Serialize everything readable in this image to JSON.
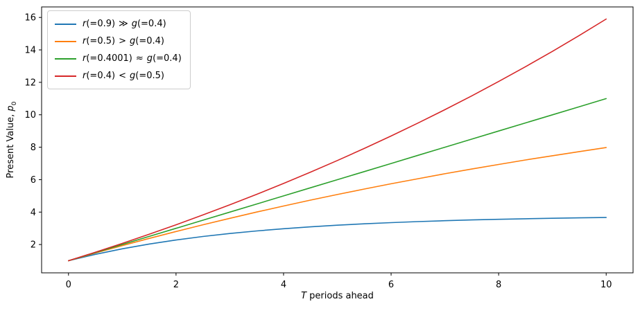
{
  "chart_data": {
    "type": "line",
    "title": "",
    "xlabel": {
      "var": "T",
      "text": " periods ahead"
    },
    "ylabel": {
      "text": "Present Value, ",
      "var": "p",
      "sub": "0"
    },
    "xlim": [
      -0.5,
      10.5
    ],
    "ylim": [
      0.255,
      16.649
    ],
    "xticks": [
      0,
      2,
      4,
      6,
      8,
      10
    ],
    "yticks": [
      2,
      4,
      6,
      8,
      10,
      12,
      14,
      16
    ],
    "grid": false,
    "legend_position": "upper left",
    "axis_color": "#000000",
    "x": [
      0,
      0.5,
      1,
      1.5,
      2,
      2.5,
      3,
      3.5,
      4,
      4.5,
      5,
      5.5,
      6,
      6.5,
      7,
      7.5,
      8,
      8.5,
      9,
      9.5,
      10
    ],
    "series": [
      {
        "name": "r(=0.9) ≫ g(=0.4)",
        "label_parts": {
          "lhs_var": "r",
          "lhs": "(=0.9)",
          "rel": "≫",
          "rhs_var": "g",
          "rhs": "(=0.4)"
        },
        "color": "#1f77b4",
        "values": [
          1.0,
          1.397,
          1.737,
          2.029,
          2.28,
          2.495,
          2.68,
          2.838,
          2.975,
          3.091,
          3.192,
          3.278,
          3.352,
          3.415,
          3.47,
          3.517,
          3.557,
          3.591,
          3.621,
          3.646,
          3.668
        ]
      },
      {
        "name": "r(=0.5) > g(=0.4)",
        "label_parts": {
          "lhs_var": "r",
          "lhs": "(=0.5)",
          "rel": ">",
          "rhs_var": "g",
          "rhs": "(=0.4)"
        },
        "color": "#ff7f0e",
        "values": [
          1.0,
          1.475,
          1.933,
          2.376,
          2.804,
          3.218,
          3.617,
          4.003,
          4.376,
          4.737,
          5.085,
          5.421,
          5.746,
          6.059,
          6.363,
          6.655,
          6.938,
          7.212,
          7.476,
          7.731,
          7.977
        ]
      },
      {
        "name": "r(=0.4001) ≈ g(=0.4)",
        "label_parts": {
          "lhs_var": "r",
          "lhs": "(=0.4001)",
          "rel": "≈",
          "rhs_var": "g",
          "rhs": "(=0.4)"
        },
        "color": "#2ca02c",
        "values": [
          1.0,
          1.5,
          2.0,
          2.5,
          3.0,
          3.5,
          3.999,
          4.499,
          4.999,
          5.499,
          5.999,
          6.498,
          6.998,
          7.498,
          7.998,
          8.497,
          8.997,
          9.497,
          9.996,
          10.496,
          10.996
        ]
      },
      {
        "name": "r(=0.4) < g(=0.5)",
        "label_parts": {
          "lhs_var": "r",
          "lhs": "(=0.4)",
          "rel": "<",
          "rhs_var": "g",
          "rhs": "(=0.5)"
        },
        "color": "#d62728",
        "values": [
          1.0,
          1.526,
          2.071,
          2.635,
          3.219,
          3.824,
          4.449,
          5.097,
          5.767,
          6.461,
          7.179,
          7.922,
          8.692,
          9.488,
          10.313,
          11.166,
          12.049,
          12.964,
          13.91,
          14.89,
          15.904
        ]
      }
    ]
  }
}
